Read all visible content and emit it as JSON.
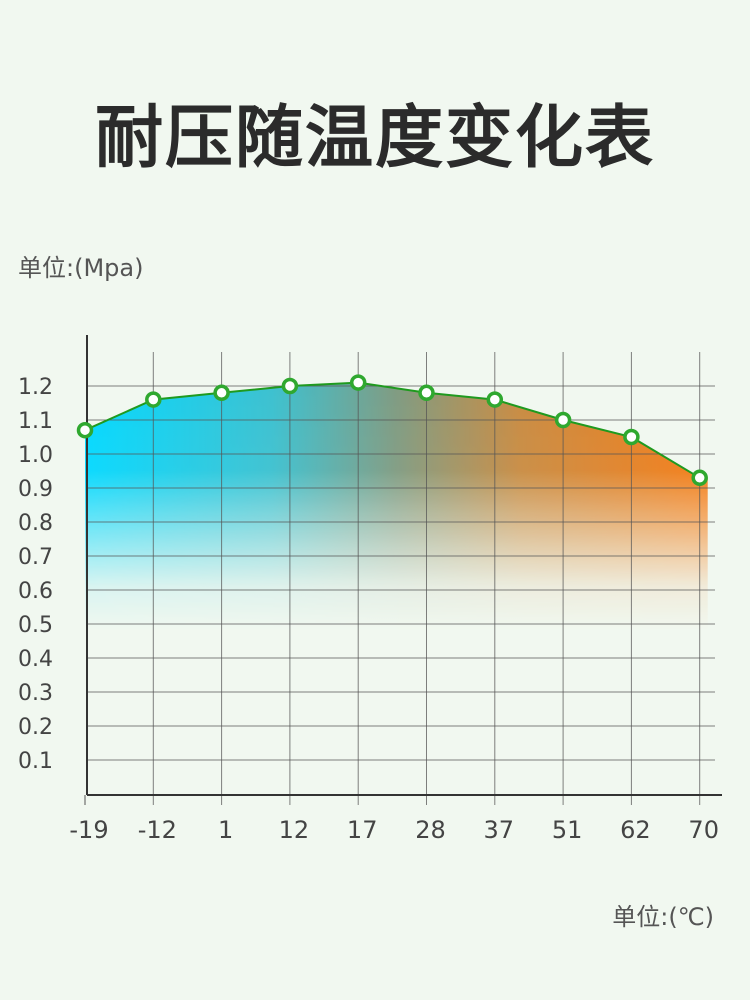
{
  "title": "耐压随温度变化表",
  "y_unit_label": "单位:(Mpa)",
  "x_unit_label": "单位:(℃)",
  "colors": {
    "background": "#f1f8f0",
    "line": "#1f9a1f",
    "marker": "#2fa82f",
    "gradient_left": "#00d8ff",
    "gradient_right": "#f57a12",
    "grid": "#555555"
  },
  "chart_data": {
    "type": "area",
    "title": "耐压随温度变化表",
    "xlabel": "单位:(℃)",
    "ylabel": "单位:(Mpa)",
    "categories": [
      "-19",
      "-12",
      "1",
      "12",
      "17",
      "28",
      "37",
      "51",
      "62",
      "70"
    ],
    "yticks": [
      "0.1",
      "0.2",
      "0.3",
      "0.4",
      "0.5",
      "0.6",
      "0.7",
      "0.8",
      "0.9",
      "1.0",
      "1.1",
      "1.2"
    ],
    "series": [
      {
        "values": [
          1.07,
          1.16,
          1.18,
          1.2,
          1.21,
          1.18,
          1.16,
          1.1,
          1.05,
          0.93
        ]
      }
    ],
    "ylim": [
      0,
      1.3
    ],
    "grid": true
  }
}
